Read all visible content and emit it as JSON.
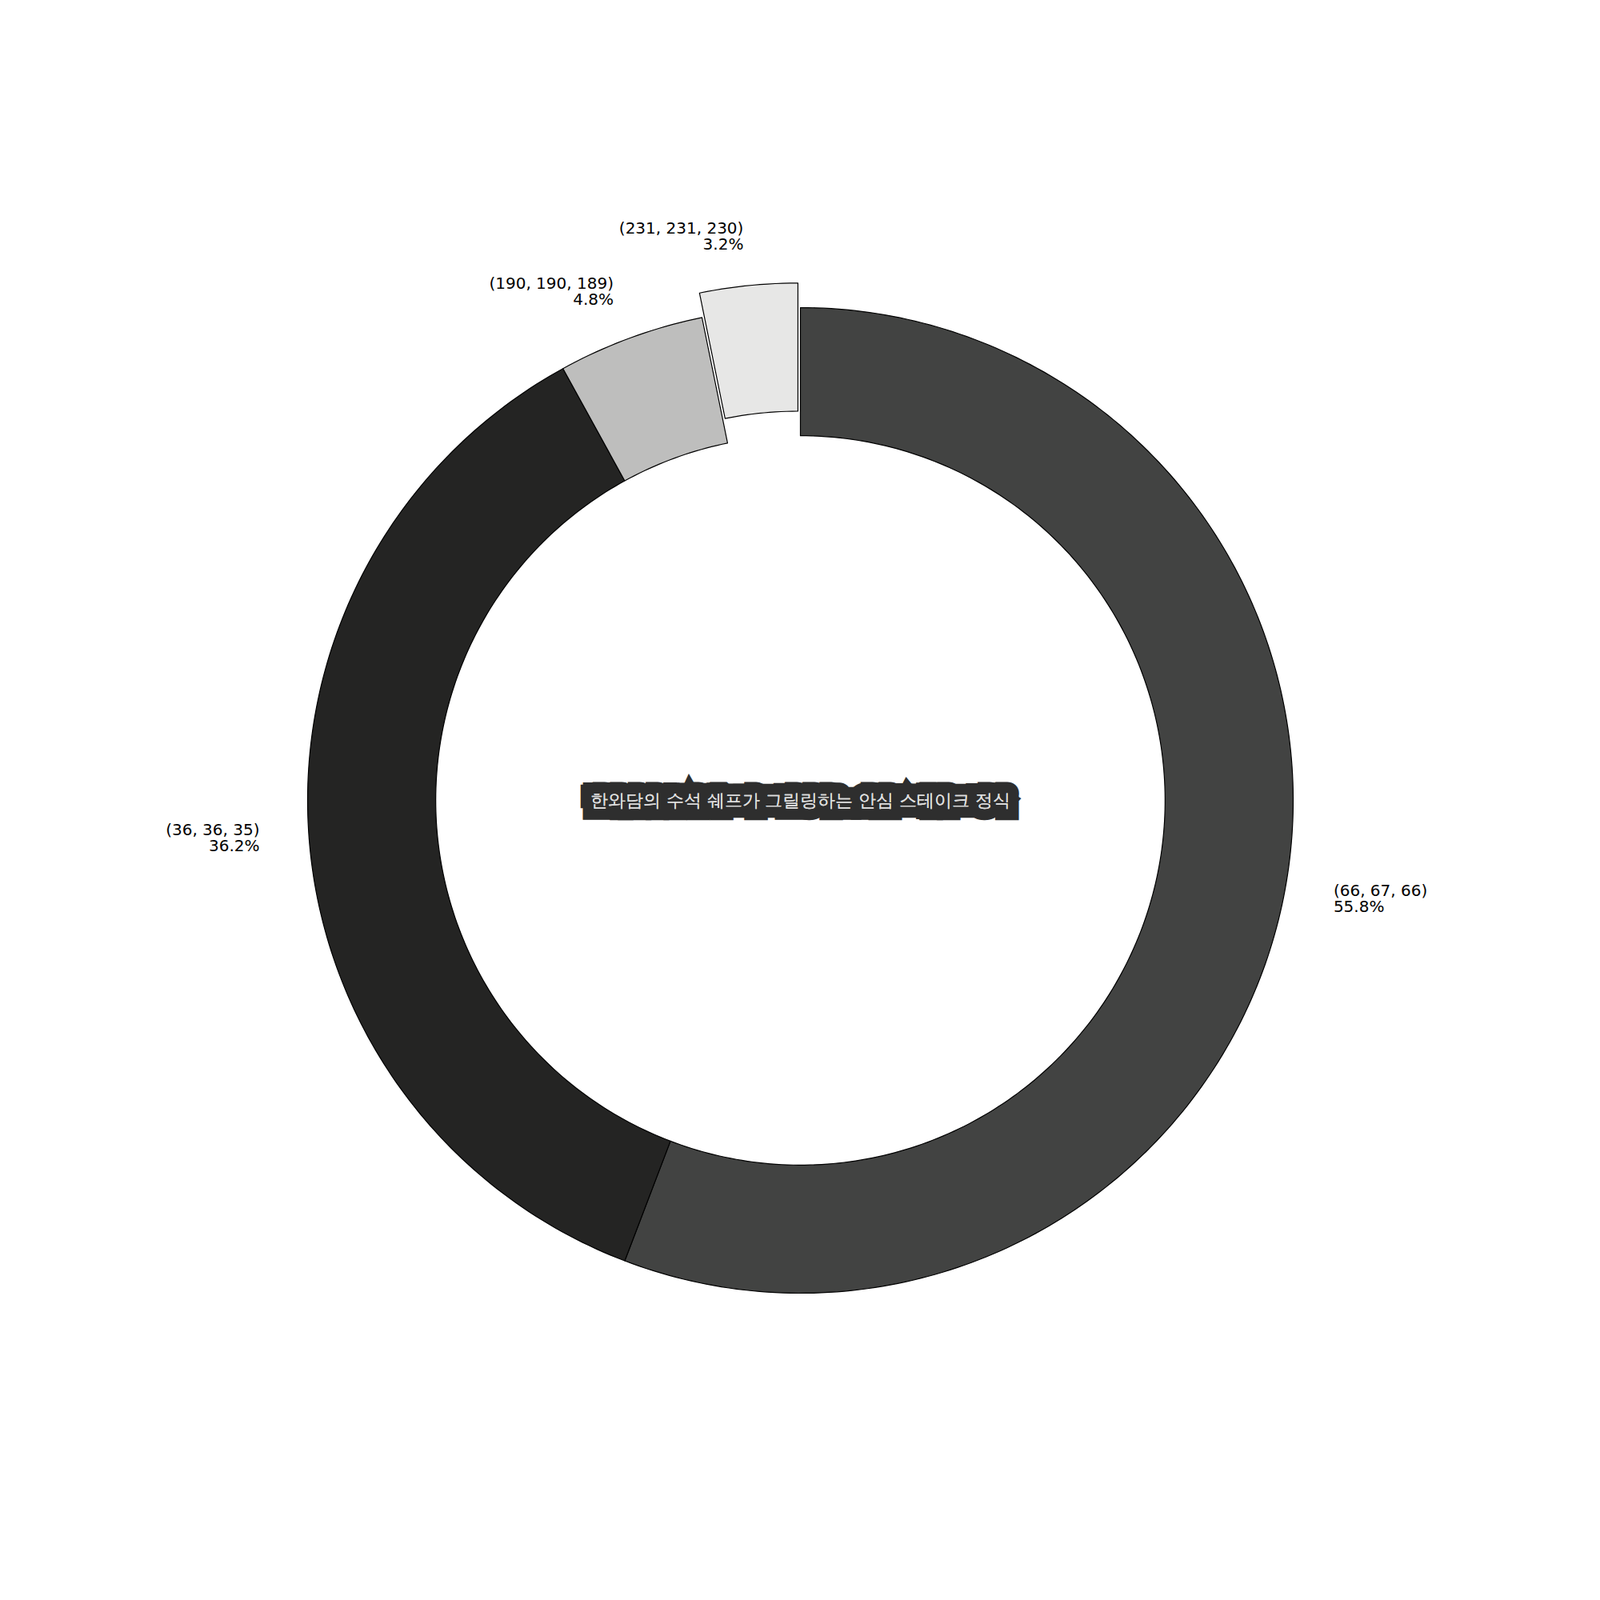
{
  "chart_data": {
    "type": "donut",
    "categories": [
      "(66, 67, 66)",
      "(36, 36, 35)",
      "(190, 190, 189)",
      "(231, 231, 230)"
    ],
    "values": [
      55.8,
      36.2,
      4.8,
      3.2
    ],
    "value_labels": [
      "55.8%",
      "36.2%",
      "4.8%",
      "3.2%"
    ],
    "colors": [
      "#424342",
      "#242423",
      "#bebebd",
      "#e7e7e6"
    ],
    "data_labels": true,
    "annotation": "한와담의 수석 쉐프가 그릴링하는 안심 스테이크 정식"
  }
}
